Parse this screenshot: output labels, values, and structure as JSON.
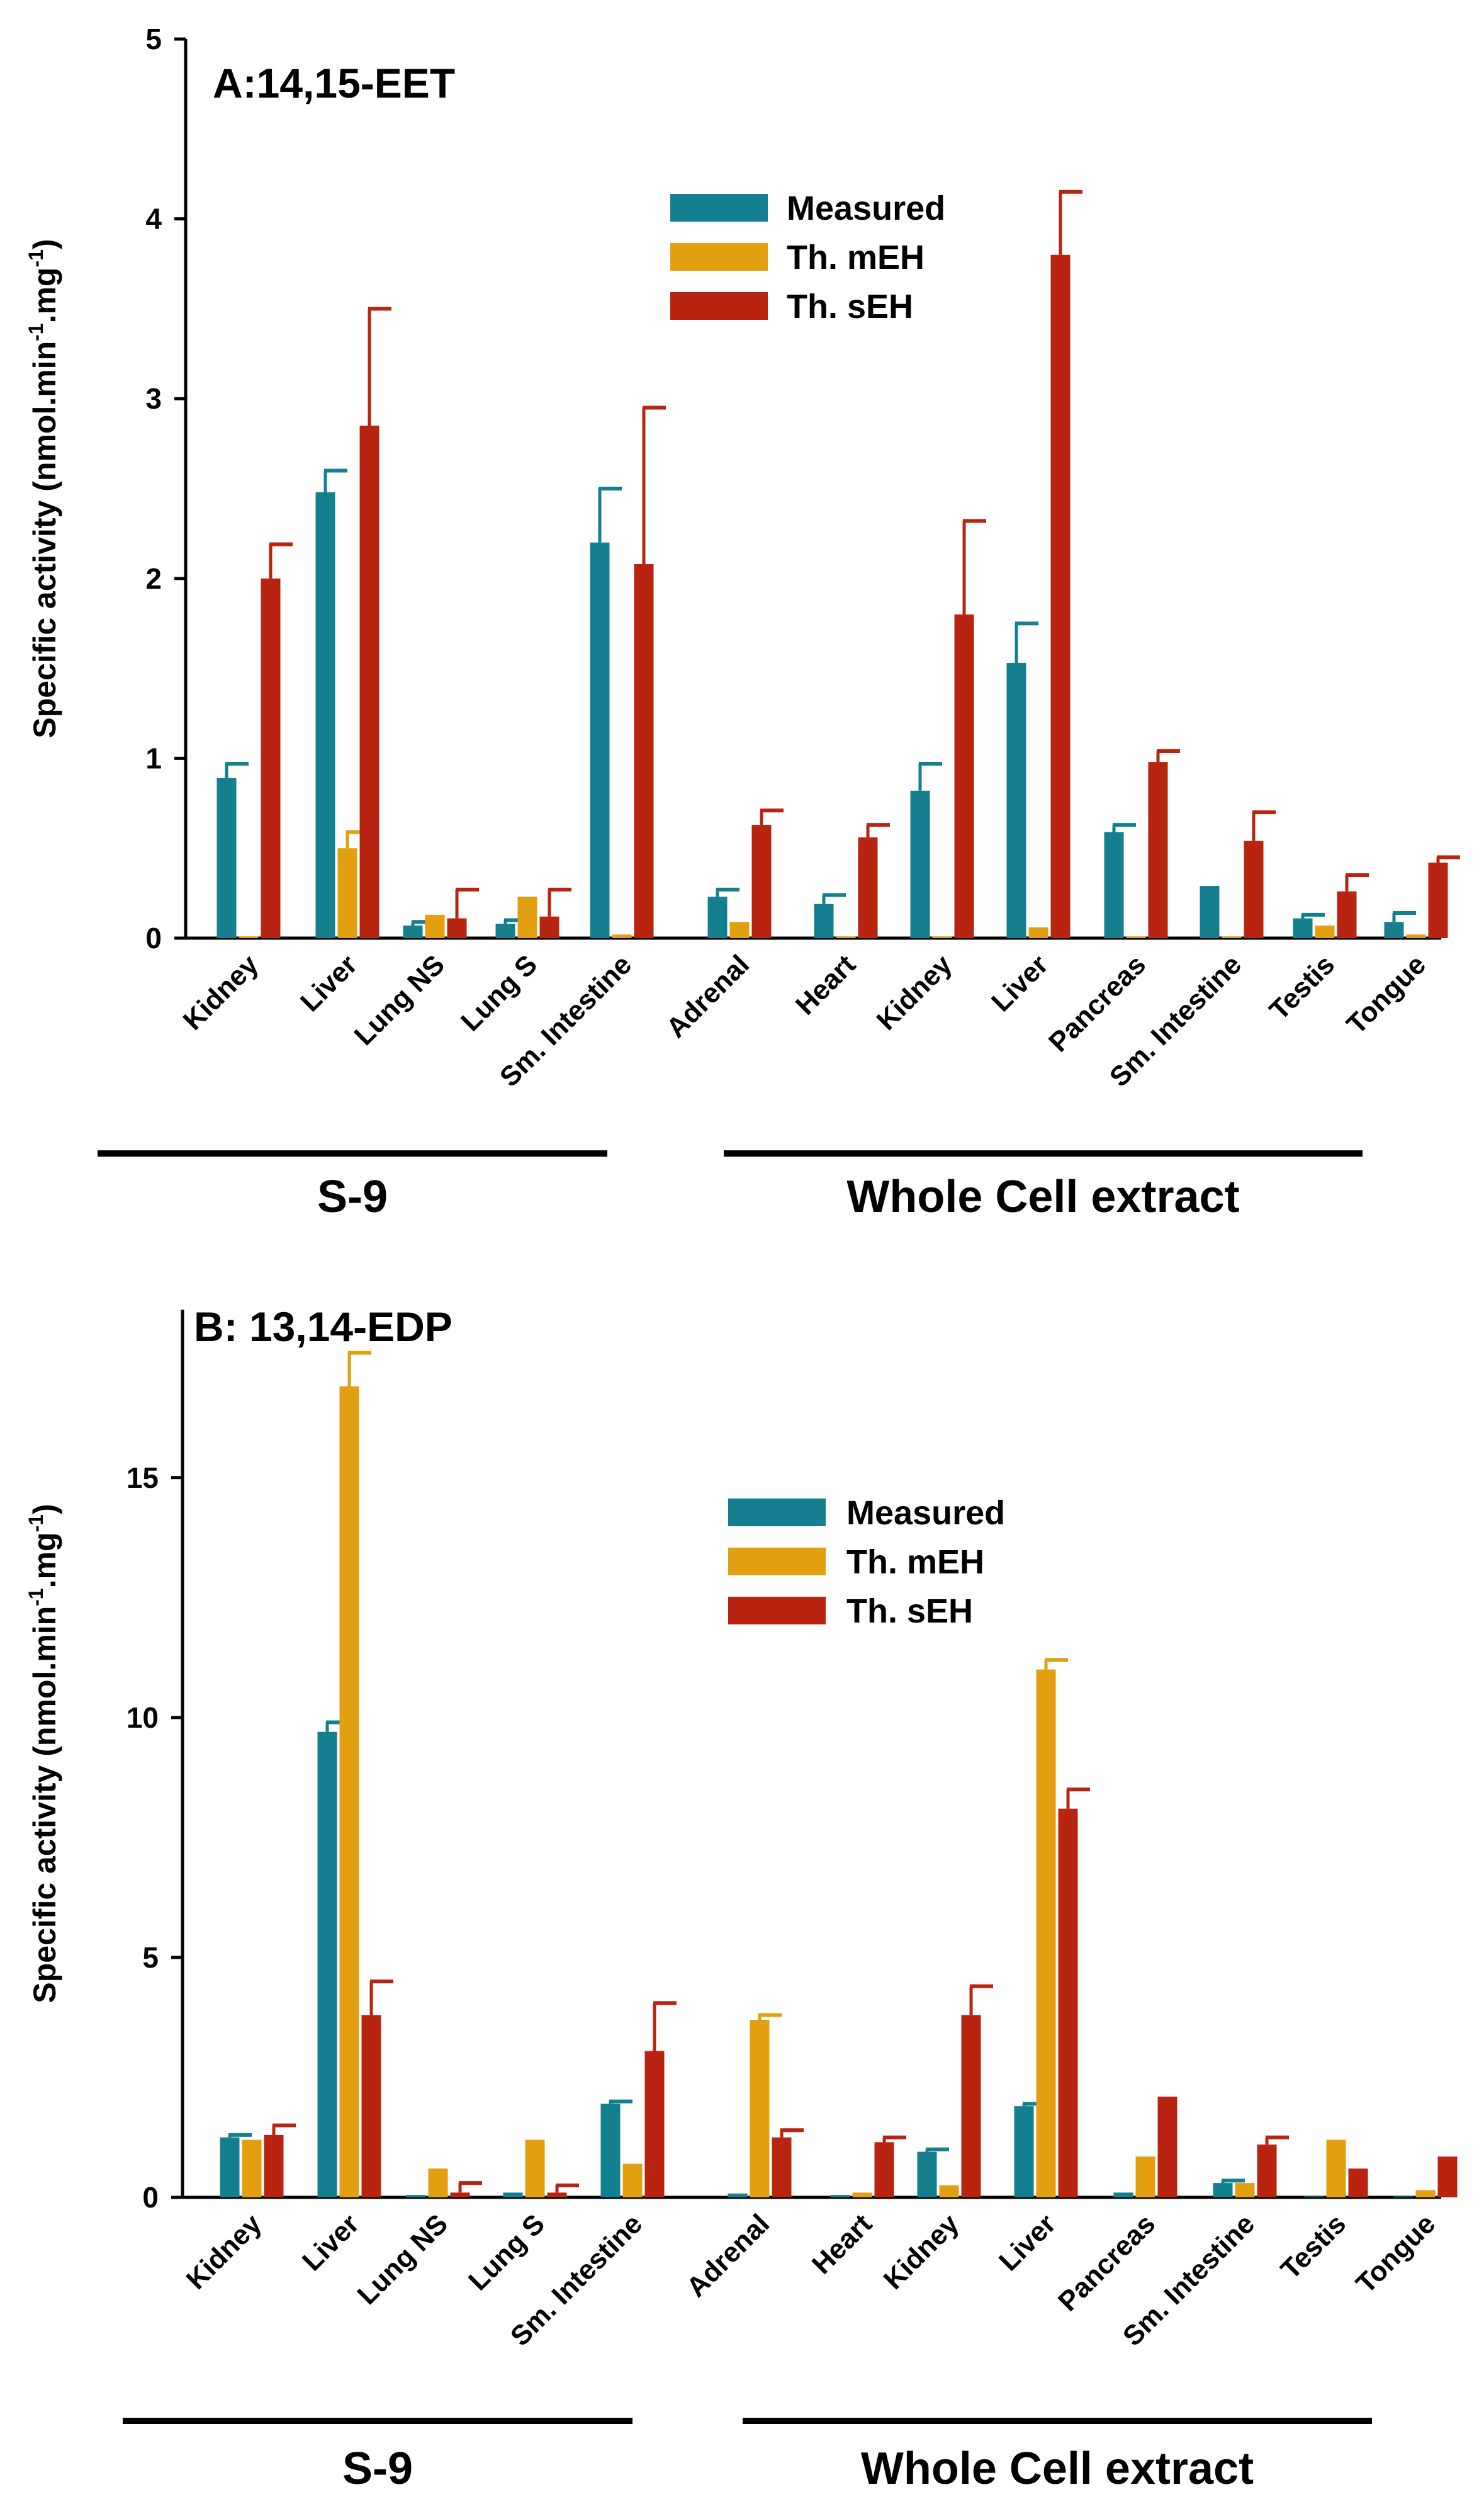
{
  "chart_data": [
    {
      "type": "bar",
      "title": "A:14,15-EET",
      "ylabel": "Specific activity (nmol.min",
      "ylabel_parts": [
        "Specific activity (nmol.min",
        "-1",
        ".mg",
        "-1",
        ")"
      ],
      "ylim": [
        0,
        5
      ],
      "yticks": [
        0,
        1,
        2,
        3,
        4,
        5
      ],
      "ytick_labels": [
        "0",
        "1",
        "2",
        "3",
        "4",
        "5"
      ],
      "legend_position": "top-center",
      "colors": {
        "Measured": "#137f8f",
        "Th. mEH": "#e2a011",
        "Th. sEH": "#b82410"
      },
      "groups": [
        {
          "label": "S-9",
          "categories": [
            "Kidney",
            "Liver",
            "Lung NS",
            "Lung S",
            "Sm. Intestine"
          ]
        },
        {
          "label": "Whole Cell extract",
          "categories": [
            "Adrenal",
            "Heart",
            "Kidney",
            "Liver",
            "Pancreas",
            "Sm. Intestine",
            "Testis",
            "Tongue"
          ]
        }
      ],
      "series": [
        {
          "name": "Measured",
          "values": [
            0.89,
            2.48,
            0.07,
            0.08,
            2.2,
            0.23,
            0.19,
            0.82,
            1.53,
            0.59,
            0.29,
            0.11,
            0.09
          ],
          "errors": [
            0.08,
            0.12,
            0.02,
            0.02,
            0.3,
            0.04,
            0.05,
            0.15,
            0.22,
            0.04,
            0.0,
            0.02,
            0.05
          ]
        },
        {
          "name": "Th. mEH",
          "values": [
            0.01,
            0.5,
            0.13,
            0.23,
            0.02,
            0.09,
            0.01,
            0.01,
            0.06,
            0.01,
            0.01,
            0.07,
            0.02
          ],
          "errors": [
            0.0,
            0.09,
            0.0,
            0.0,
            0.0,
            0.0,
            0.0,
            0.0,
            0.0,
            0.0,
            0.0,
            0.0,
            0.0
          ]
        },
        {
          "name": "Th. sEH",
          "values": [
            2.0,
            2.85,
            0.11,
            0.12,
            2.08,
            0.63,
            0.56,
            1.8,
            3.8,
            0.98,
            0.54,
            0.26,
            0.42
          ],
          "errors": [
            0.19,
            0.65,
            0.16,
            0.15,
            0.87,
            0.08,
            0.07,
            0.52,
            0.35,
            0.06,
            0.16,
            0.09,
            0.03
          ]
        }
      ]
    },
    {
      "type": "bar",
      "title": "B: 13,14-EDP",
      "ylabel": "Specific activity (nmol.min",
      "ylabel_parts": [
        "Specific activity (nmol.min",
        "-1",
        ".mg",
        "-1",
        ")"
      ],
      "ylim": [
        0,
        18.5
      ],
      "yticks": [
        0,
        5,
        10,
        15
      ],
      "ytick_labels": [
        "0",
        "5",
        "10",
        "15"
      ],
      "legend_position": "top-center",
      "colors": {
        "Measured": "#137f8f",
        "Th. mEH": "#e2a011",
        "Th. sEH": "#b82410"
      },
      "groups": [
        {
          "label": "S-9",
          "categories": [
            "Kidney",
            "Liver",
            "Lung NS",
            "Lung S",
            "Sm. Intestine"
          ]
        },
        {
          "label": "Whole Cell extract",
          "categories": [
            "Adrenal",
            "Heart",
            "Kidney",
            "Liver",
            "Pancreas",
            "Sm. Intestine",
            "Testis",
            "Tongue"
          ]
        }
      ],
      "series": [
        {
          "name": "Measured",
          "values": [
            1.25,
            9.7,
            0.05,
            0.1,
            1.95,
            0.08,
            0.05,
            0.95,
            1.9,
            0.1,
            0.3,
            0.02,
            0.02
          ],
          "errors": [
            0.05,
            0.2,
            0.0,
            0.0,
            0.05,
            0.0,
            0.0,
            0.05,
            0.05,
            0.0,
            0.05,
            0.0,
            0.0
          ]
        },
        {
          "name": "Th. mEH",
          "values": [
            1.2,
            16.9,
            0.6,
            1.2,
            0.7,
            3.7,
            0.1,
            0.25,
            11.0,
            0.85,
            0.3,
            1.2,
            0.15
          ],
          "errors": [
            0.0,
            0.7,
            0.0,
            0.0,
            0.0,
            0.1,
            0.0,
            0.0,
            0.2,
            0.0,
            0.0,
            0.0,
            0.0
          ]
        },
        {
          "name": "Th. sEH",
          "values": [
            1.3,
            3.8,
            0.1,
            0.1,
            3.05,
            1.25,
            1.15,
            3.8,
            8.1,
            2.1,
            1.1,
            0.6,
            0.85
          ],
          "errors": [
            0.2,
            0.7,
            0.2,
            0.15,
            1.0,
            0.15,
            0.1,
            0.6,
            0.4,
            0.0,
            0.15,
            0.0,
            0.0
          ]
        }
      ]
    }
  ]
}
